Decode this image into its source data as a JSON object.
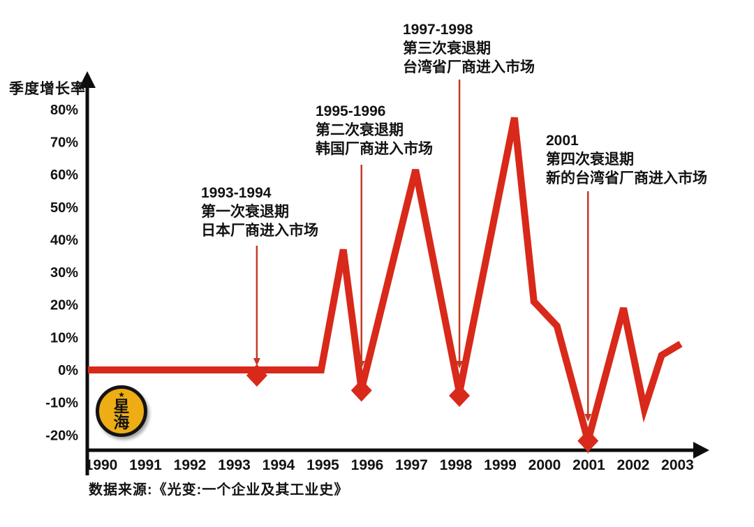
{
  "colors": {
    "line_red": "#d8291a",
    "arrow_red": "#c43a24",
    "axis_black": "#0d0d0d",
    "text_black": "#121212",
    "logo_yellow": "#eead15"
  },
  "y_axis": {
    "title": "季度增长率",
    "ticks": [
      {
        "label": "80%",
        "value": 80
      },
      {
        "label": "70%",
        "value": 70
      },
      {
        "label": "60%",
        "value": 60
      },
      {
        "label": "50%",
        "value": 50
      },
      {
        "label": "40%",
        "value": 40
      },
      {
        "label": "30%",
        "value": 30
      },
      {
        "label": "20%",
        "value": 20
      },
      {
        "label": "10%",
        "value": 10
      },
      {
        "label": "0%",
        "value": 0
      },
      {
        "label": "-10%",
        "value": -10
      },
      {
        "label": "-20%",
        "value": -20
      }
    ]
  },
  "x_axis": {
    "start_year": 1990,
    "labels": [
      "1990",
      "1991",
      "1992",
      "1993",
      "1994",
      "1995",
      "1996",
      "1997",
      "1998",
      "1999",
      "2000",
      "2001",
      "2002",
      "2003"
    ]
  },
  "annotations": [
    {
      "lines": [
        "1993-1994",
        "第一次衰退期",
        "日本厂商进入市场"
      ],
      "arrow_year": 1993.51
    },
    {
      "lines": [
        "1995-1996",
        "第二次衰退期",
        "韩国厂商进入市场"
      ],
      "arrow_year": 1995.87
    },
    {
      "lines": [
        "1997-1998",
        "第三次衰退期",
        "台湾省厂商进入市场"
      ],
      "arrow_year": 1998.08
    },
    {
      "lines": [
        "2001",
        "第四次衰退期",
        "新的台湾省厂商进入市场"
      ],
      "arrow_year": 2000.98
    }
  ],
  "logo": {
    "star": "★",
    "char_top": "星",
    "char_bottom": "海"
  },
  "source": "数据来源:《光变:一个企业及其工业史》",
  "chart_data": {
    "type": "line",
    "title": "",
    "xlabel": "",
    "ylabel": "季度增长率",
    "x_range": [
      1989.7,
      2003.6
    ],
    "y_range": [
      -25,
      85
    ],
    "grid": false,
    "legend": false,
    "y_ticks_pct": [
      80,
      70,
      60,
      50,
      40,
      30,
      20,
      10,
      0,
      -10,
      -20
    ],
    "x_tick_years": [
      1990,
      1991,
      1992,
      1993,
      1994,
      1995,
      1996,
      1997,
      1998,
      1999,
      2000,
      2001,
      2002,
      2003
    ],
    "series": [
      {
        "name": "季度增长率(%)",
        "points": [
          [
            1989.7,
            0
          ],
          [
            1994.96,
            0
          ],
          [
            1995.46,
            37
          ],
          [
            1995.87,
            -6
          ],
          [
            1997.09,
            61.5
          ],
          [
            1998.08,
            -7
          ],
          [
            1999.32,
            77.5
          ],
          [
            1999.76,
            21
          ],
          [
            2000.28,
            13.5
          ],
          [
            2000.98,
            -21.8
          ],
          [
            2001.78,
            19
          ],
          [
            2002.25,
            -12
          ],
          [
            2002.64,
            4.5
          ],
          [
            2003.07,
            8
          ]
        ]
      }
    ],
    "recession_markers": [
      {
        "year": 1993.51,
        "pct": -1.7
      },
      {
        "year": 1995.87,
        "pct": -6.3
      },
      {
        "year": 1998.08,
        "pct": -7.9
      },
      {
        "year": 2000.98,
        "pct": -21.8
      }
    ]
  }
}
